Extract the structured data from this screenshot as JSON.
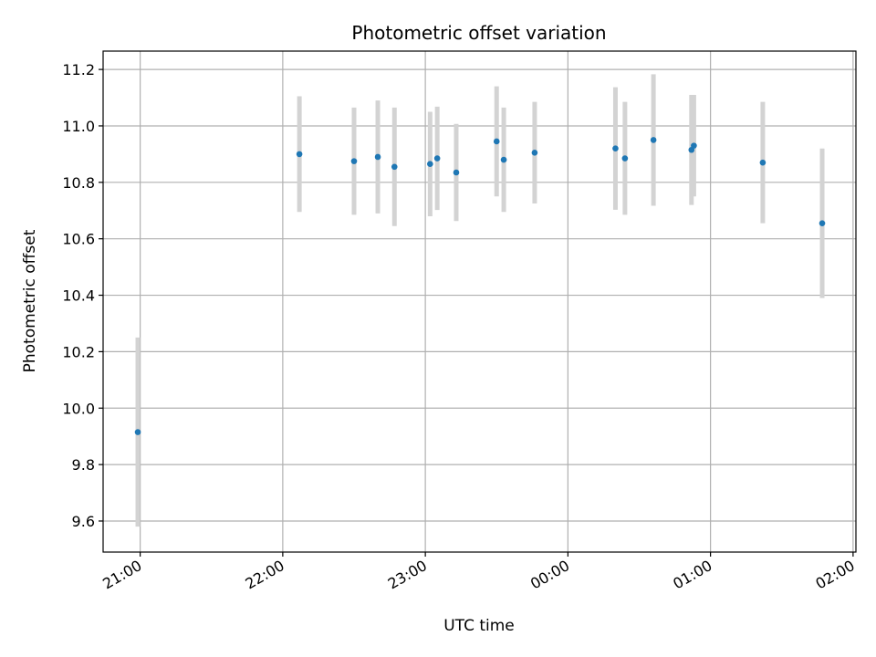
{
  "chart_data": {
    "type": "scatter",
    "title": "Photometric offset variation",
    "xlabel": "UTC time",
    "ylabel": "Photometric offset",
    "x_ticks": [
      "21:00",
      "22:00",
      "23:00",
      "00:00",
      "01:00",
      "02:00"
    ],
    "x_tick_hours": [
      21,
      22,
      23,
      24,
      25,
      26
    ],
    "xlim_hours": [
      20.74,
      26.02
    ],
    "y_ticks": [
      "9.6",
      "9.8",
      "10.0",
      "10.2",
      "10.4",
      "10.6",
      "10.8",
      "11.0",
      "11.2"
    ],
    "y_tick_values": [
      9.6,
      9.8,
      10.0,
      10.2,
      10.4,
      10.6,
      10.8,
      11.0,
      11.2
    ],
    "ylim": [
      9.49,
      11.265
    ],
    "grid": true,
    "colors": {
      "point": "#1f77b4",
      "errorbar": "#d3d3d3",
      "grid": "#b0b0b0"
    },
    "points": [
      {
        "time": "20:59",
        "y": 9.915,
        "yerr": 0.335
      },
      {
        "time": "22:07",
        "y": 10.9,
        "yerr": 0.205
      },
      {
        "time": "22:30",
        "y": 10.875,
        "yerr": 0.19
      },
      {
        "time": "22:40",
        "y": 10.89,
        "yerr": 0.2
      },
      {
        "time": "22:47",
        "y": 10.855,
        "yerr": 0.21
      },
      {
        "time": "23:02",
        "y": 10.865,
        "yerr": 0.185
      },
      {
        "time": "23:05",
        "y": 10.885,
        "yerr": 0.183
      },
      {
        "time": "23:13",
        "y": 10.835,
        "yerr": 0.172
      },
      {
        "time": "23:30",
        "y": 10.945,
        "yerr": 0.195
      },
      {
        "time": "23:33",
        "y": 10.88,
        "yerr": 0.185
      },
      {
        "time": "23:46",
        "y": 10.905,
        "yerr": 0.18
      },
      {
        "time": "00:20",
        "y": 10.92,
        "yerr": 0.217
      },
      {
        "time": "00:24",
        "y": 10.885,
        "yerr": 0.2
      },
      {
        "time": "00:36",
        "y": 10.95,
        "yerr": 0.233
      },
      {
        "time": "00:52",
        "y": 10.915,
        "yerr": 0.195
      },
      {
        "time": "00:53",
        "y": 10.93,
        "yerr": 0.18
      },
      {
        "time": "01:22",
        "y": 10.87,
        "yerr": 0.215
      },
      {
        "time": "01:47",
        "y": 10.655,
        "yerr": 0.265
      }
    ]
  }
}
